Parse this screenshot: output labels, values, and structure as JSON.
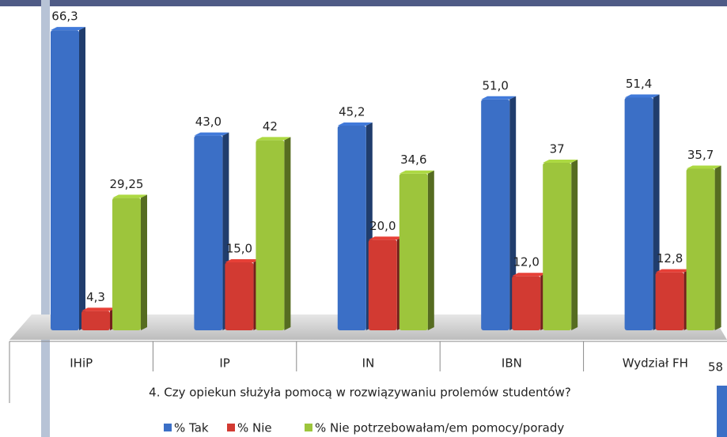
{
  "chart_data": {
    "type": "bar3d",
    "title": "4. Czy opiekun służyła pomocą w rozwiązywaniu prolemów studentów?",
    "categories": [
      "IHiP",
      "IP",
      "IN",
      "IBN",
      "Wydział FH"
    ],
    "series": [
      {
        "name": "% Tak",
        "color": "#3b6fc6",
        "values": [
          66.3,
          43.0,
          45.2,
          51.0,
          51.4
        ],
        "value_labels": [
          "66,3",
          "43,0",
          "45,2",
          "51,0",
          "51,4"
        ]
      },
      {
        "name": "% Nie",
        "color": "#d23a32",
        "values": [
          4.3,
          15.0,
          20.0,
          12.0,
          12.8
        ],
        "value_labels": [
          "4,3",
          "15,0",
          "20,0",
          "12,0",
          "12,8"
        ]
      },
      {
        "name": "% Nie potrzebowałam/em pomocy/porady",
        "color": "#9dc53c",
        "values": [
          29.25,
          42,
          34.6,
          37,
          35.7
        ],
        "value_labels": [
          "29,25",
          "42",
          "34,6",
          "37",
          "35,7"
        ]
      }
    ],
    "cropped_label": "58"
  }
}
